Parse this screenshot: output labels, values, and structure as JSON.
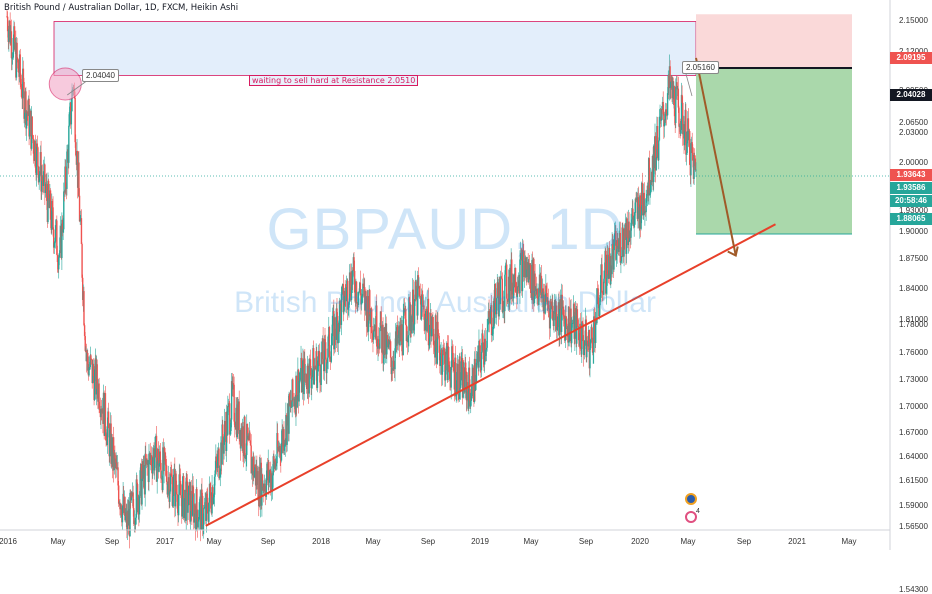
{
  "legend": "British Pound / Australian Dollar, 1D, FXCM, Heikin Ashi",
  "watermark": {
    "symbol": "GBPAUD, 1D",
    "name": "British Pound / Australian Dollar"
  },
  "annotation": "waiting to sell hard at Resistance 2.0510",
  "callouts": {
    "left_high": "2.04040",
    "right_high": "2.05160"
  },
  "badge_count": "4",
  "price_labels": {
    "stop": "2.09195",
    "entry": "2.04028",
    "current": "1.93643",
    "ask": "1.93586",
    "countdown": "20:58:46",
    "target": "1.88065"
  },
  "colors": {
    "up": "#26a69a",
    "down": "#ef5350",
    "trendline": "#e8402a",
    "zone_fill": "#e3eefb",
    "zone_border": "#d81b60",
    "stop_fill": "#f9d5d5",
    "target_fill": "#a5d6a7",
    "projection_arrow": "#a05a28"
  },
  "chart_data": {
    "type": "candlestick",
    "style": "Heikin Ashi",
    "symbol": "GBPAUD",
    "timeframe": "1D",
    "y_axis": {
      "ticks": [
        "2.15000",
        "2.12000",
        "2.09500",
        "2.06500",
        "2.03000",
        "2.00000",
        "1.96000",
        "1.93000",
        "1.90000",
        "1.87500",
        "1.84000",
        "1.81000",
        "1.78000",
        "1.76000",
        "1.73000",
        "1.70000",
        "1.67000",
        "1.64000",
        "1.61500",
        "1.59000",
        "1.56500",
        "1.54300"
      ],
      "ylim": [
        1.543,
        2.15
      ]
    },
    "x_axis": {
      "ticks": [
        "2016",
        "May",
        "Sep",
        "2017",
        "May",
        "Sep",
        "2018",
        "May",
        "Sep",
        "2019",
        "May",
        "Sep",
        "2020",
        "May",
        "Sep",
        "2021",
        "May"
      ]
    },
    "approx_closes": [
      {
        "date": "2016-01",
        "price": 2.09
      },
      {
        "date": "2016-03",
        "price": 1.97
      },
      {
        "date": "2016-05",
        "price": 1.86
      },
      {
        "date": "2016-06",
        "price": 2.03
      },
      {
        "date": "2016-07",
        "price": 1.76
      },
      {
        "date": "2016-08",
        "price": 1.73
      },
      {
        "date": "2016-10",
        "price": 1.6
      },
      {
        "date": "2016-12",
        "price": 1.67
      },
      {
        "date": "2017-02",
        "price": 1.63
      },
      {
        "date": "2017-04",
        "price": 1.61
      },
      {
        "date": "2017-06",
        "price": 1.72
      },
      {
        "date": "2017-08",
        "price": 1.64
      },
      {
        "date": "2017-09",
        "price": 1.65
      },
      {
        "date": "2017-11",
        "price": 1.74
      },
      {
        "date": "2018-01",
        "price": 1.76
      },
      {
        "date": "2018-03",
        "price": 1.84
      },
      {
        "date": "2018-05",
        "price": 1.79
      },
      {
        "date": "2018-06",
        "price": 1.76
      },
      {
        "date": "2018-08",
        "price": 1.82
      },
      {
        "date": "2018-10",
        "price": 1.76
      },
      {
        "date": "2018-12",
        "price": 1.73
      },
      {
        "date": "2019-02",
        "price": 1.82
      },
      {
        "date": "2019-04",
        "price": 1.85
      },
      {
        "date": "2019-06",
        "price": 1.81
      },
      {
        "date": "2019-08",
        "price": 1.79
      },
      {
        "date": "2019-09",
        "price": 1.77
      },
      {
        "date": "2019-10",
        "price": 1.84
      },
      {
        "date": "2019-12",
        "price": 1.89
      },
      {
        "date": "2020-01",
        "price": 1.91
      },
      {
        "date": "2020-03",
        "price": 2.02
      },
      {
        "date": "2020-04",
        "price": 1.99
      },
      {
        "date": "2020-05",
        "price": 1.936
      }
    ],
    "resistance_zone": {
      "from": "2016-05",
      "to": "2020-05",
      "low": 2.033,
      "high": 2.085
    },
    "trendline": {
      "from": {
        "date": "2017-04",
        "price": 1.6
      },
      "to": {
        "date": "2020-11",
        "price": 1.89
      }
    },
    "position": {
      "type": "short",
      "stop": 2.09195,
      "entry": 2.04028,
      "target": 1.88065
    },
    "current_price": 1.93643,
    "projection_arrow": {
      "from": {
        "date": "2020-05",
        "price": 2.05
      },
      "to": {
        "date": "2020-08",
        "price": 1.86
      }
    },
    "grid": false,
    "legend_position": "top-left"
  }
}
